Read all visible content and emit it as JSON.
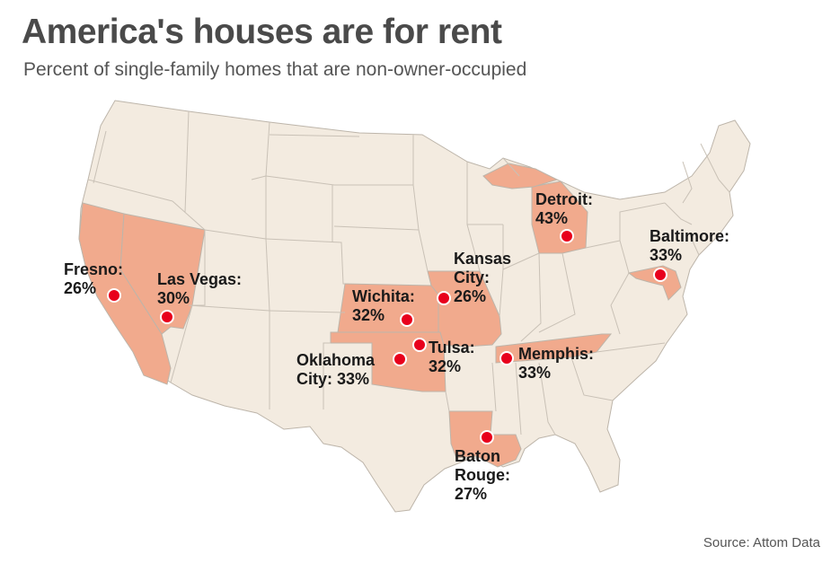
{
  "title": "America's houses are for rent",
  "subtitle": "Percent of single-family homes that are non-owner-occupied",
  "source": "Source: Attom Data",
  "colors": {
    "land": "#f3ebe0",
    "highlight": "#f1aa8d",
    "marker": "#e8001c",
    "border": "#bdb5aa"
  },
  "highlighted_states": [
    "California",
    "Nevada",
    "Kansas",
    "Missouri",
    "Oklahoma",
    "Louisiana",
    "Tennessee",
    "Michigan",
    "Maryland"
  ],
  "cities": [
    {
      "name": "Fresno",
      "label_lines": [
        "Fresno:",
        "26%"
      ],
      "percent": 26
    },
    {
      "name": "Las Vegas",
      "label_lines": [
        "Las Vegas:",
        "30%"
      ],
      "percent": 30
    },
    {
      "name": "Wichita",
      "label_lines": [
        "Wichita:",
        "32%"
      ],
      "percent": 32
    },
    {
      "name": "Kansas City",
      "label_lines": [
        "Kansas",
        "City:",
        "26%"
      ],
      "percent": 26
    },
    {
      "name": "Tulsa",
      "label_lines": [
        "Tulsa:",
        "32%"
      ],
      "percent": 32
    },
    {
      "name": "Oklahoma City",
      "label_lines": [
        "Oklahoma",
        "City: 33%"
      ],
      "percent": 33
    },
    {
      "name": "Memphis",
      "label_lines": [
        "Memphis:",
        "33%"
      ],
      "percent": 33
    },
    {
      "name": "Detroit",
      "label_lines": [
        "Detroit:",
        "43%"
      ],
      "percent": 43
    },
    {
      "name": "Baltimore",
      "label_lines": [
        "Baltimore:",
        "33%"
      ],
      "percent": 33
    },
    {
      "name": "Baton Rouge",
      "label_lines": [
        "Baton",
        "Rouge:",
        "27%"
      ],
      "percent": 27
    }
  ]
}
